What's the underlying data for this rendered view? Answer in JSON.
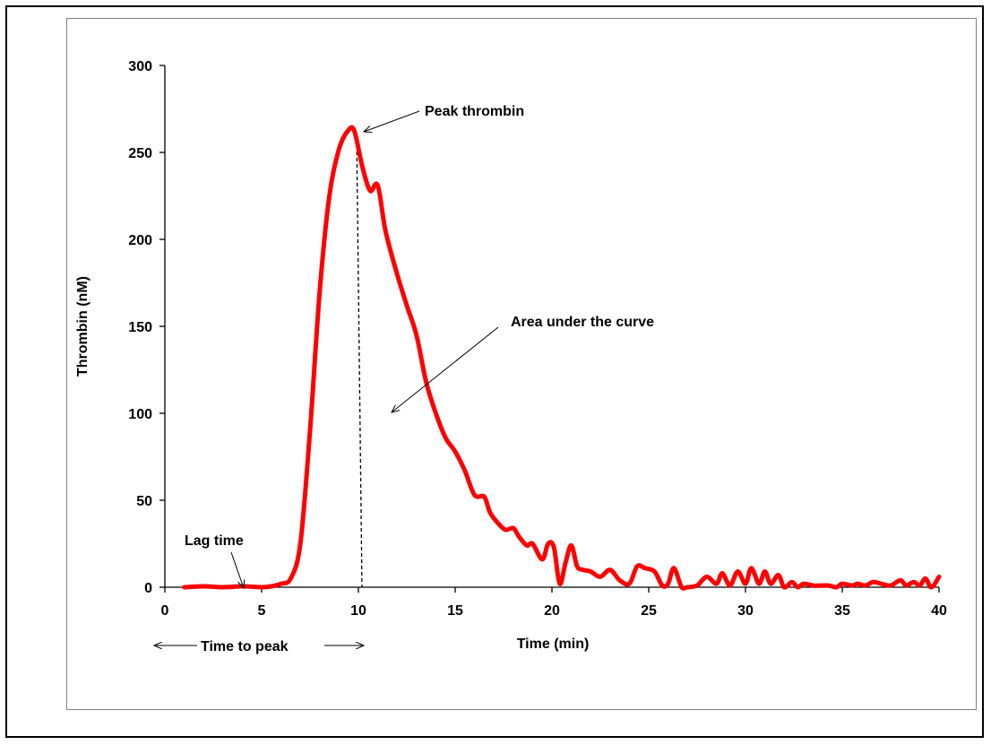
{
  "chart_data": {
    "type": "line",
    "title": "",
    "xlabel": "Time (min)",
    "ylabel": "Thrombin (nM)",
    "xlim": [
      0,
      40
    ],
    "ylim": [
      0,
      300
    ],
    "x_ticks": [
      "0",
      "5",
      "10",
      "15",
      "20",
      "25",
      "30",
      "35",
      "40"
    ],
    "y_ticks": [
      "0",
      "50",
      "100",
      "150",
      "200",
      "250",
      "300"
    ],
    "grid": false,
    "legend": "none",
    "line_color": "#ff0000",
    "series": [
      {
        "x": [
          1,
          2,
          3,
          4,
          5,
          5.5,
          6,
          6.5,
          7,
          7.5,
          8,
          8.5,
          9,
          9.5,
          9.8,
          10.2,
          10.6,
          11,
          11.4,
          12,
          12.5,
          13,
          13.5,
          14,
          14.5,
          15,
          15.5,
          16,
          16.5,
          16.8,
          17.2,
          17.6,
          18,
          18.3,
          18.7,
          19,
          19.5,
          19.8,
          20.1,
          20.4,
          20.7,
          21,
          21.3,
          21.6,
          22,
          22.5,
          23,
          23.5,
          24,
          24.4,
          24.8,
          25.3,
          25.7,
          26,
          26.3,
          26.7,
          27,
          27.5,
          28,
          28.5,
          28.8,
          29.2,
          29.6,
          30,
          30.3,
          30.7,
          31,
          31.3,
          31.7,
          32,
          32.4,
          32.7,
          33,
          33.5,
          34,
          34.3,
          34.7,
          35,
          35.5,
          35.8,
          36.2,
          36.6,
          37,
          37.5,
          38,
          38.3,
          38.7,
          39,
          39.3,
          39.6,
          40
        ],
        "y": [
          0,
          0.5,
          0,
          0.5,
          0,
          0.5,
          2,
          5,
          25,
          90,
          170,
          225,
          252,
          263,
          262,
          242,
          228,
          231,
          205,
          180,
          162,
          145,
          118,
          100,
          86,
          78,
          67,
          53,
          52,
          43,
          37,
          33,
          34,
          29,
          24,
          25,
          16,
          25,
          23,
          2,
          14,
          24,
          12,
          10,
          9,
          6,
          10,
          4,
          2,
          12,
          11,
          9,
          1,
          2,
          11,
          0,
          0,
          1,
          6,
          2,
          8,
          1,
          9,
          2,
          11,
          2,
          9,
          2,
          7,
          0,
          3,
          0,
          2,
          1,
          1,
          1,
          0,
          2,
          1,
          2,
          1,
          3,
          2,
          1,
          4,
          1,
          3,
          1,
          5,
          0,
          6
        ]
      }
    ],
    "annotations": {
      "peak": "Peak thrombin",
      "auc": "Area under the curve",
      "lag": "Lag time",
      "ttp": "Time to peak"
    }
  }
}
